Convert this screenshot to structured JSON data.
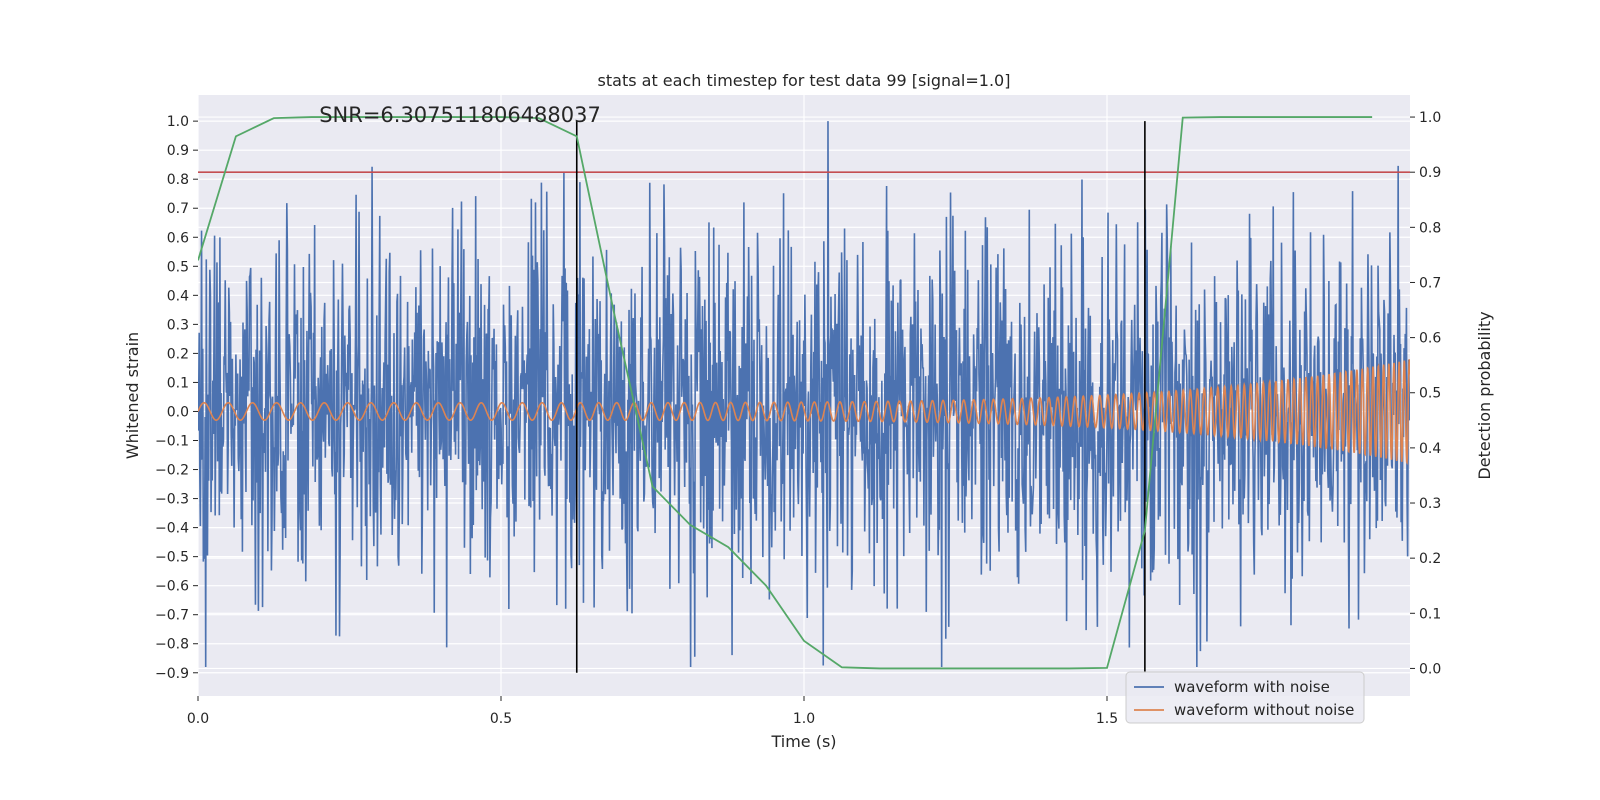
{
  "chart_data": {
    "type": "line",
    "title": "stats at each timestep for test data 99 [signal=1.0]",
    "xlabel": "Time (s)",
    "ylabel_left": "Whitened strain",
    "ylabel_right": "Detection probability",
    "annotation": "SNR=6.307511806488037",
    "xlim": [
      0.0,
      2.0
    ],
    "ylim_left": [
      -0.98,
      1.09
    ],
    "ylim_right": [
      -0.05,
      1.04
    ],
    "xticks": [
      "0.0",
      "0.5",
      "1.0",
      "1.5"
    ],
    "xtick_values": [
      0.0,
      0.5,
      1.0,
      1.5
    ],
    "yticks_left": [
      "1.0",
      "0.9",
      "0.8",
      "0.7",
      "0.6",
      "0.5",
      "0.4",
      "0.3",
      "0.2",
      "0.1",
      "0.0",
      "−0.1",
      "−0.2",
      "−0.3",
      "−0.4",
      "−0.5",
      "−0.6",
      "−0.7",
      "−0.8",
      "−0.9"
    ],
    "ytick_values_left": [
      1.0,
      0.9,
      0.8,
      0.7,
      0.6,
      0.5,
      0.4,
      0.3,
      0.2,
      0.1,
      0.0,
      -0.1,
      -0.2,
      -0.3,
      -0.4,
      -0.5,
      -0.6,
      -0.7,
      -0.8,
      -0.9
    ],
    "yticks_right": [
      "1.0",
      "0.9",
      "0.8",
      "0.7",
      "0.6",
      "0.5",
      "0.4",
      "0.3",
      "0.2",
      "0.1",
      "0.0"
    ],
    "ytick_values_right": [
      1.0,
      0.9,
      0.8,
      0.7,
      0.6,
      0.5,
      0.4,
      0.3,
      0.2,
      0.1,
      0.0
    ],
    "grid": true,
    "legend_position": "lower-right",
    "series": [
      {
        "name": "waveform with noise",
        "axis": "left",
        "color": "#4c72b0",
        "kind": "noisy-strain",
        "n_samples": 2048,
        "amplitude_std": 0.3
      },
      {
        "name": "waveform without noise",
        "axis": "left",
        "color": "#dd8452",
        "kind": "chirp",
        "amplitude_start": 0.03,
        "amplitude_end": 0.18,
        "freq_start_hz": 25,
        "freq_end_hz": 120
      },
      {
        "axis": "right",
        "color": "#55a868",
        "x": [
          0.0,
          0.0625,
          0.125,
          0.1875,
          0.25,
          0.3125,
          0.375,
          0.4375,
          0.5,
          0.5625,
          0.625,
          0.6875,
          0.75,
          0.8125,
          0.875,
          0.9375,
          1.0,
          1.0625,
          1.125,
          1.1875,
          1.25,
          1.3125,
          1.375,
          1.4375,
          1.5,
          1.5625,
          1.625,
          1.6875,
          1.75,
          1.8125,
          1.875,
          1.9375
        ],
        "y": [
          0.74,
          0.965,
          0.998,
          1.0,
          1.0,
          1.0,
          1.0,
          1.0,
          1.0,
          0.998,
          0.965,
          0.64,
          0.33,
          0.26,
          0.22,
          0.15,
          0.05,
          0.002,
          0.0,
          0.0,
          0.0,
          0.0,
          0.0,
          0.0,
          0.001,
          0.25,
          0.999,
          1.0,
          1.0,
          1.0,
          1.0,
          1.0
        ]
      }
    ],
    "hlines": [
      {
        "axis": "right",
        "y": 0.9,
        "color": "#c44e52"
      }
    ],
    "vlines": [
      {
        "x": 0.625,
        "color": "#000000"
      },
      {
        "x": 1.5625,
        "color": "#000000"
      }
    ]
  }
}
